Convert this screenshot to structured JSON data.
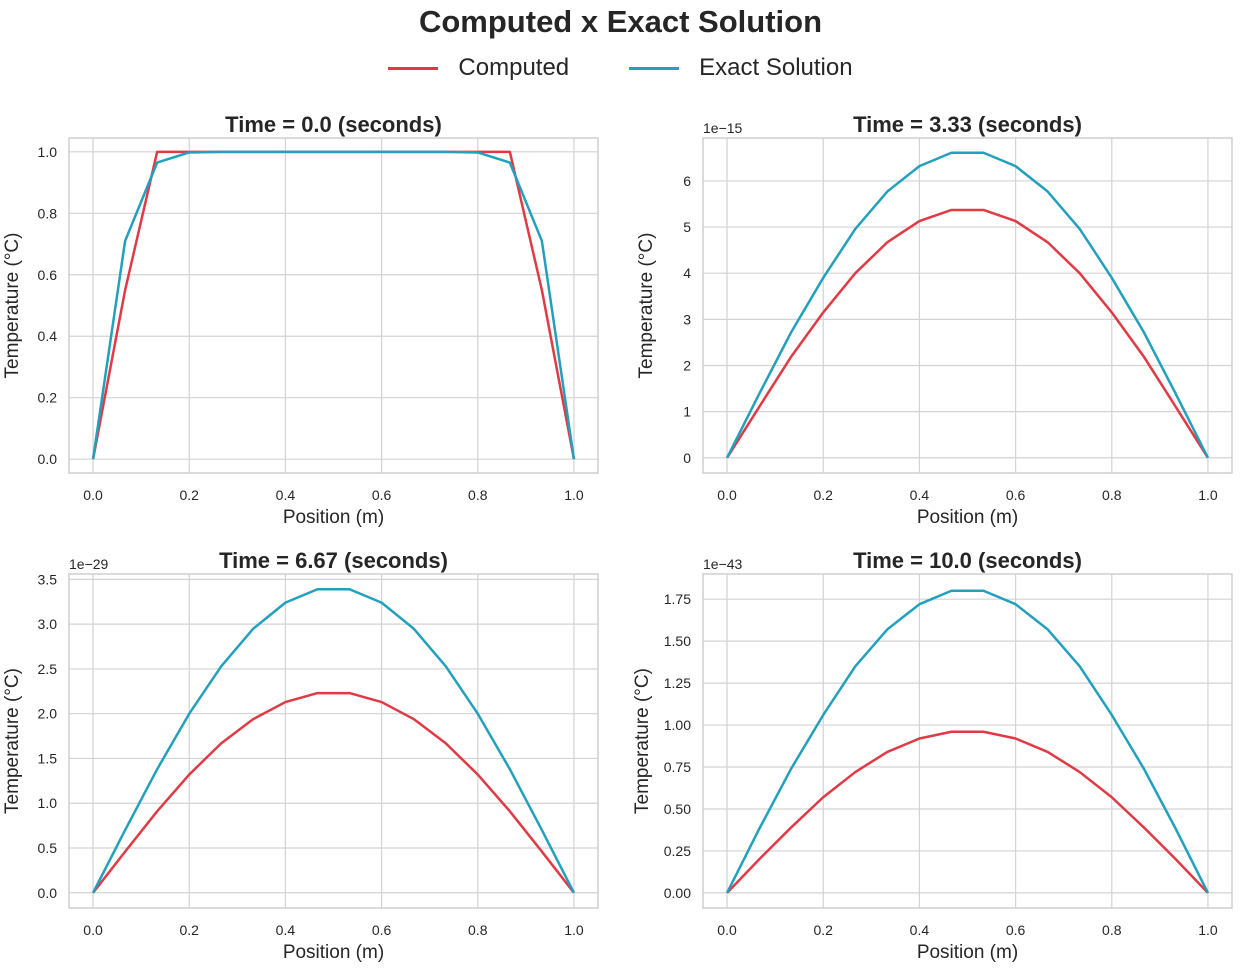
{
  "figure": {
    "title": "Computed x Exact Solution",
    "legend": [
      {
        "label": "Computed",
        "color": "#e03a45"
      },
      {
        "label": "Exact Solution",
        "color": "#22a0bd"
      }
    ]
  },
  "chart_data": [
    {
      "type": "line",
      "title": "Time = 0.0 (seconds)",
      "xlabel": "Position (m)",
      "ylabel": "Temperature (°C)",
      "offset_text": "",
      "xlim": [
        -0.05,
        1.05
      ],
      "ylim": [
        -0.045,
        1.045
      ],
      "xticks": [
        0.0,
        0.2,
        0.4,
        0.6,
        0.8,
        1.0
      ],
      "xtick_labels": [
        "0.0",
        "0.2",
        "0.4",
        "0.6",
        "0.8",
        "1.0"
      ],
      "yticks": [
        0.0,
        0.2,
        0.4,
        0.6,
        0.8,
        1.0
      ],
      "ytick_labels": [
        "0.0",
        "0.2",
        "0.4",
        "0.6",
        "0.8",
        "1.0"
      ],
      "series": [
        {
          "name": "Computed",
          "color": "#e03a45",
          "x": [
            0,
            0.0667,
            0.1333,
            0.2,
            0.2667,
            0.3333,
            0.4,
            0.4667,
            0.5333,
            0.6,
            0.6667,
            0.7333,
            0.8,
            0.8667,
            0.9333,
            1.0
          ],
          "y": [
            0,
            0.55,
            1.0,
            1.0,
            1.0,
            1.0,
            1.0,
            1.0,
            1.0,
            1.0,
            1.0,
            1.0,
            1.0,
            1.0,
            0.55,
            0
          ]
        },
        {
          "name": "Exact Solution",
          "color": "#22a0bd",
          "x": [
            0,
            0.0667,
            0.1333,
            0.2,
            0.2667,
            0.3333,
            0.4,
            0.4667,
            0.5333,
            0.6,
            0.6667,
            0.7333,
            0.8,
            0.8667,
            0.9333,
            1.0
          ],
          "y": [
            0,
            0.71,
            0.965,
            0.998,
            1.0,
            1.0,
            1.0,
            1.0,
            1.0,
            1.0,
            1.0,
            1.0,
            0.998,
            0.965,
            0.71,
            0
          ]
        }
      ]
    },
    {
      "type": "line",
      "title": "Time = 3.33 (seconds)",
      "xlabel": "Position (m)",
      "ylabel": "Temperature (°C)",
      "offset_text": "1e−15",
      "xlim": [
        -0.05,
        1.05
      ],
      "ylim": [
        -0.33,
        6.93
      ],
      "xticks": [
        0.0,
        0.2,
        0.4,
        0.6,
        0.8,
        1.0
      ],
      "xtick_labels": [
        "0.0",
        "0.2",
        "0.4",
        "0.6",
        "0.8",
        "1.0"
      ],
      "yticks": [
        0,
        1,
        2,
        3,
        4,
        5,
        6
      ],
      "ytick_labels": [
        "0",
        "1",
        "2",
        "3",
        "4",
        "5",
        "6"
      ],
      "series": [
        {
          "name": "Computed",
          "color": "#e03a45",
          "x": [
            0,
            0.0667,
            0.1333,
            0.2,
            0.2667,
            0.3333,
            0.4,
            0.4667,
            0.5333,
            0.6,
            0.6667,
            0.7333,
            0.8,
            0.8667,
            0.9333,
            1.0
          ],
          "y": [
            0,
            1.1,
            2.19,
            3.15,
            4.0,
            4.67,
            5.13,
            5.37,
            5.37,
            5.13,
            4.67,
            4.0,
            3.15,
            2.19,
            1.1,
            0
          ]
        },
        {
          "name": "Exact Solution",
          "color": "#22a0bd",
          "x": [
            0,
            0.0667,
            0.1333,
            0.2,
            0.2667,
            0.3333,
            0.4,
            0.4667,
            0.5333,
            0.6,
            0.6667,
            0.7333,
            0.8,
            0.8667,
            0.9333,
            1.0
          ],
          "y": [
            0,
            1.38,
            2.72,
            3.9,
            4.96,
            5.77,
            6.32,
            6.61,
            6.61,
            6.32,
            5.77,
            4.96,
            3.9,
            2.72,
            1.38,
            0
          ]
        }
      ]
    },
    {
      "type": "line",
      "title": "Time = 6.67 (seconds)",
      "xlabel": "Position (m)",
      "ylabel": "Temperature (°C)",
      "offset_text": "1e−29",
      "xlim": [
        -0.05,
        1.05
      ],
      "ylim": [
        -0.17,
        3.56
      ],
      "xticks": [
        0.0,
        0.2,
        0.4,
        0.6,
        0.8,
        1.0
      ],
      "xtick_labels": [
        "0.0",
        "0.2",
        "0.4",
        "0.6",
        "0.8",
        "1.0"
      ],
      "yticks": [
        0.0,
        0.5,
        1.0,
        1.5,
        2.0,
        2.5,
        3.0,
        3.5
      ],
      "ytick_labels": [
        "0.0",
        "0.5",
        "1.0",
        "1.5",
        "2.0",
        "2.5",
        "3.0",
        "3.5"
      ],
      "series": [
        {
          "name": "Computed",
          "color": "#e03a45",
          "x": [
            0,
            0.0667,
            0.1333,
            0.2,
            0.2667,
            0.3333,
            0.4,
            0.4667,
            0.5333,
            0.6,
            0.6667,
            0.7333,
            0.8,
            0.8667,
            0.9333,
            1.0
          ],
          "y": [
            0,
            0.46,
            0.91,
            1.32,
            1.67,
            1.94,
            2.13,
            2.23,
            2.23,
            2.13,
            1.94,
            1.67,
            1.32,
            0.91,
            0.46,
            0
          ]
        },
        {
          "name": "Exact Solution",
          "color": "#22a0bd",
          "x": [
            0,
            0.0667,
            0.1333,
            0.2,
            0.2667,
            0.3333,
            0.4,
            0.4667,
            0.5333,
            0.6,
            0.6667,
            0.7333,
            0.8,
            0.8667,
            0.9333,
            1.0
          ],
          "y": [
            0,
            0.7,
            1.38,
            2.0,
            2.53,
            2.95,
            3.24,
            3.39,
            3.39,
            3.24,
            2.95,
            2.53,
            2.0,
            1.38,
            0.7,
            0
          ]
        }
      ]
    },
    {
      "type": "line",
      "title": "Time = 10.0 (seconds)",
      "xlabel": "Position (m)",
      "ylabel": "Temperature (°C)",
      "offset_text": "1e−43",
      "xlim": [
        -0.05,
        1.05
      ],
      "ylim": [
        -0.09,
        1.9
      ],
      "xticks": [
        0.0,
        0.2,
        0.4,
        0.6,
        0.8,
        1.0
      ],
      "xtick_labels": [
        "0.0",
        "0.2",
        "0.4",
        "0.6",
        "0.8",
        "1.0"
      ],
      "yticks": [
        0.0,
        0.25,
        0.5,
        0.75,
        1.0,
        1.25,
        1.5,
        1.75
      ],
      "ytick_labels": [
        "0.00",
        "0.25",
        "0.50",
        "0.75",
        "1.00",
        "1.25",
        "1.50",
        "1.75"
      ],
      "series": [
        {
          "name": "Computed",
          "color": "#e03a45",
          "x": [
            0,
            0.0667,
            0.1333,
            0.2,
            0.2667,
            0.3333,
            0.4,
            0.4667,
            0.5333,
            0.6,
            0.6667,
            0.7333,
            0.8,
            0.8667,
            0.9333,
            1.0
          ],
          "y": [
            0,
            0.2,
            0.39,
            0.57,
            0.72,
            0.84,
            0.92,
            0.96,
            0.96,
            0.92,
            0.84,
            0.72,
            0.57,
            0.39,
            0.2,
            0
          ]
        },
        {
          "name": "Exact Solution",
          "color": "#22a0bd",
          "x": [
            0,
            0.0667,
            0.1333,
            0.2,
            0.2667,
            0.3333,
            0.4,
            0.4667,
            0.5333,
            0.6,
            0.6667,
            0.7333,
            0.8,
            0.8667,
            0.9333,
            1.0
          ],
          "y": [
            0,
            0.38,
            0.74,
            1.06,
            1.35,
            1.57,
            1.72,
            1.8,
            1.8,
            1.72,
            1.57,
            1.35,
            1.06,
            0.74,
            0.38,
            0
          ]
        }
      ]
    }
  ]
}
